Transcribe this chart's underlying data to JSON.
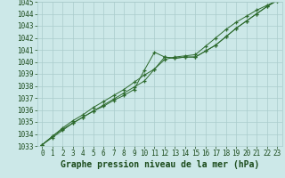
{
  "x_values": [
    0,
    1,
    2,
    3,
    4,
    5,
    6,
    7,
    8,
    9,
    10,
    11,
    12,
    13,
    14,
    15,
    16,
    17,
    18,
    19,
    20,
    21,
    22,
    23
  ],
  "line1": [
    1033.1,
    1033.8,
    1034.4,
    1034.9,
    1035.4,
    1035.9,
    1036.3,
    1036.8,
    1037.2,
    1037.7,
    1039.3,
    1040.8,
    1040.4,
    1040.3,
    1040.4,
    1040.4,
    1040.9,
    1041.4,
    1042.1,
    1042.8,
    1043.4,
    1044.0,
    1044.6,
    1045.1
  ],
  "line2": [
    1033.1,
    1033.7,
    1034.3,
    1034.9,
    1035.4,
    1035.9,
    1036.4,
    1036.9,
    1037.4,
    1037.9,
    1038.4,
    1039.4,
    1040.4,
    1040.3,
    1040.4,
    1040.4,
    1040.9,
    1041.4,
    1042.1,
    1042.8,
    1043.4,
    1044.0,
    1044.6,
    1045.1
  ],
  "line3": [
    1033.1,
    1033.8,
    1034.5,
    1035.1,
    1035.6,
    1036.2,
    1036.7,
    1037.2,
    1037.7,
    1038.3,
    1038.9,
    1039.4,
    1040.2,
    1040.4,
    1040.5,
    1040.6,
    1041.3,
    1042.0,
    1042.7,
    1043.3,
    1043.8,
    1044.3,
    1044.7,
    1045.1
  ],
  "line_color": "#2d6a2d",
  "marker": "+",
  "bg_color": "#cce8e8",
  "grid_color": "#aacccc",
  "text_color": "#1a4a1a",
  "ylim_min": 1033,
  "ylim_max": 1045,
  "ytick_step": 1,
  "xlim_min": -0.5,
  "xlim_max": 23.5,
  "xlabel": "Graphe pression niveau de la mer (hPa)",
  "tick_fontsize": 5.5,
  "xlabel_fontsize": 7.0
}
